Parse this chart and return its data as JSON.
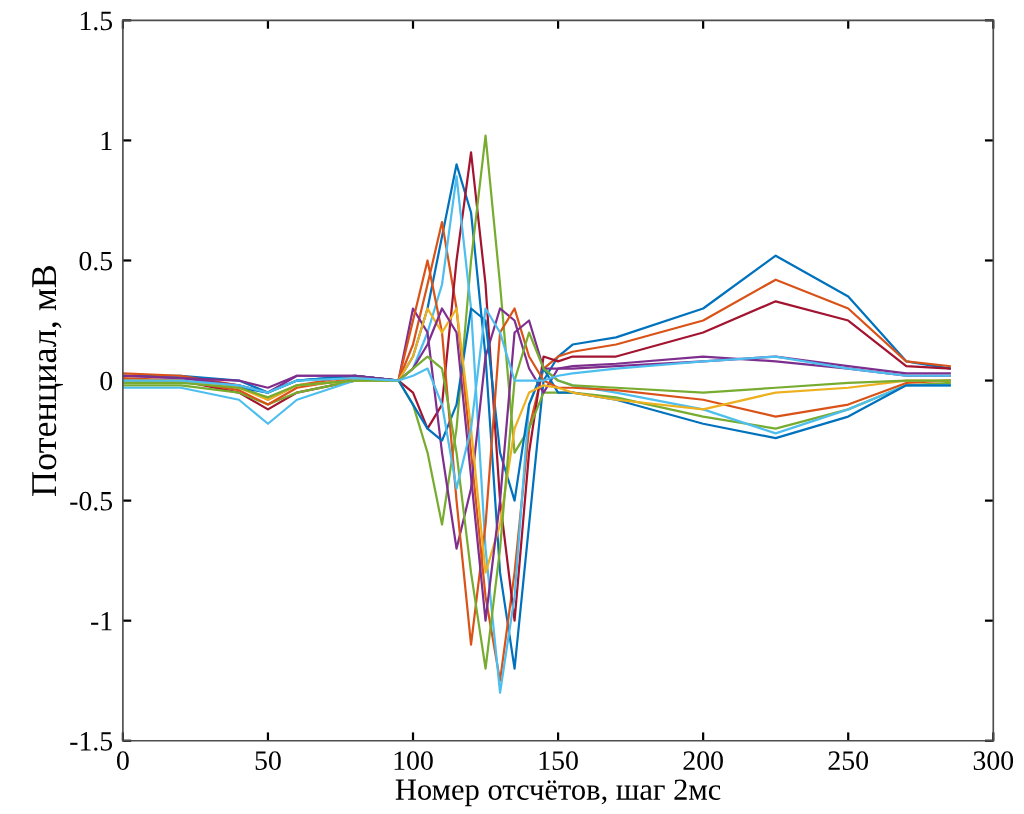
{
  "chart_data": {
    "type": "line",
    "xlabel": "Номер отсчётов, шаг 2мс",
    "ylabel": "Потенциал, мВ",
    "x": [
      0,
      20,
      40,
      50,
      60,
      80,
      95,
      100,
      105,
      110,
      115,
      120,
      125,
      130,
      135,
      140,
      145,
      150,
      155,
      170,
      200,
      225,
      250,
      270,
      285
    ],
    "xlim": [
      0,
      300
    ],
    "xticks": [
      0,
      50,
      100,
      150,
      200,
      250,
      300
    ],
    "ylim": [
      -1.5,
      1.5
    ],
    "yticks": [
      -1.5,
      -1,
      -0.5,
      0,
      0.5,
      1,
      1.5
    ],
    "grid": false,
    "legend": false,
    "marker": "none",
    "line_style": "solid",
    "series": [
      {
        "color": "#0072bd",
        "values": [
          0.02,
          0.02,
          0,
          -0.05,
          0,
          0.02,
          0,
          0.1,
          0.3,
          0.6,
          0.9,
          0.7,
          0.1,
          -0.8,
          -1.2,
          -0.6,
          0,
          0.1,
          0.15,
          0.18,
          0.3,
          0.52,
          0.35,
          0.08,
          0.05
        ]
      },
      {
        "color": "#d95319",
        "values": [
          0.03,
          0.02,
          -0.02,
          -0.08,
          -0.02,
          0.02,
          0,
          0.15,
          0.4,
          0.66,
          0.3,
          -0.3,
          -0.9,
          -1.25,
          -0.8,
          -0.2,
          0.05,
          0.1,
          0.12,
          0.15,
          0.25,
          0.42,
          0.3,
          0.08,
          0.06
        ]
      },
      {
        "color": "#a2142f",
        "values": [
          0,
          0,
          -0.05,
          -0.12,
          -0.05,
          0,
          0,
          -0.05,
          -0.2,
          -0.1,
          0.5,
          0.95,
          0.4,
          -0.5,
          -1.0,
          -0.3,
          0.1,
          0.08,
          0.1,
          0.1,
          0.2,
          0.33,
          0.25,
          0.06,
          0.05
        ]
      },
      {
        "color": "#77ac30",
        "values": [
          -0.02,
          -0.02,
          -0.05,
          -0.1,
          -0.05,
          0,
          0,
          -0.1,
          -0.3,
          -0.6,
          -0.2,
          0.5,
          1.02,
          0.4,
          -0.3,
          -0.2,
          -0.05,
          -0.05,
          -0.05,
          -0.07,
          -0.15,
          -0.2,
          -0.12,
          -0.02,
          -0.01
        ]
      },
      {
        "color": "#4dbeee",
        "values": [
          -0.03,
          -0.03,
          -0.08,
          -0.18,
          -0.08,
          0,
          0,
          0.05,
          0.2,
          0.4,
          0.85,
          0.3,
          -0.7,
          -1.3,
          -0.9,
          -0.1,
          0.05,
          0,
          -0.02,
          -0.05,
          -0.12,
          -0.22,
          -0.12,
          -0.02,
          -0.02
        ]
      },
      {
        "color": "#7e2f8e",
        "values": [
          0.02,
          0.01,
          -0.02,
          -0.05,
          0.02,
          0.02,
          0,
          0.3,
          0.2,
          -0.3,
          -0.7,
          -0.45,
          0.1,
          0.3,
          0.25,
          0.05,
          -0.05,
          0.05,
          0.06,
          0.07,
          0.1,
          0.08,
          0.05,
          0.02,
          0.02
        ]
      },
      {
        "color": "#0072bd",
        "values": [
          0,
          0,
          -0.03,
          -0.05,
          0,
          0.02,
          0,
          -0.1,
          -0.2,
          -0.25,
          -0.1,
          0.3,
          0.25,
          -0.3,
          -0.5,
          -0.1,
          0.05,
          -0.05,
          -0.05,
          -0.08,
          -0.18,
          -0.24,
          -0.15,
          -0.02,
          -0.02
        ]
      },
      {
        "color": "#d95319",
        "values": [
          0.01,
          0,
          -0.04,
          -0.1,
          -0.03,
          0.01,
          0,
          0.25,
          0.5,
          0.2,
          -0.5,
          -1.1,
          -0.6,
          0.2,
          0.3,
          0.1,
          0,
          -0.03,
          -0.03,
          -0.04,
          -0.08,
          -0.15,
          -0.1,
          -0.01,
          0
        ]
      },
      {
        "color": "#edb120",
        "values": [
          0,
          0,
          -0.03,
          -0.08,
          -0.02,
          0,
          0,
          0.1,
          0.3,
          0.2,
          0.3,
          -0.2,
          -0.8,
          -0.6,
          -0.2,
          -0.05,
          -0.02,
          -0.03,
          -0.05,
          -0.08,
          -0.12,
          -0.05,
          -0.03,
          0,
          0
        ]
      },
      {
        "color": "#7e2f8e",
        "values": [
          0.02,
          0.01,
          0,
          -0.03,
          0.02,
          0.02,
          0,
          0.05,
          0.15,
          0.3,
          0.2,
          -0.4,
          -1.0,
          -0.5,
          0.2,
          0.25,
          0.05,
          0.05,
          0.05,
          0.06,
          0.08,
          0.1,
          0.06,
          0.03,
          0.03
        ]
      },
      {
        "color": "#77ac30",
        "values": [
          -0.01,
          -0.01,
          -0.03,
          -0.07,
          -0.02,
          0,
          0,
          0.05,
          0.1,
          0.05,
          -0.3,
          -0.8,
          -1.2,
          -0.7,
          0,
          0.2,
          0.05,
          0,
          -0.02,
          -0.03,
          -0.05,
          -0.03,
          -0.01,
          0,
          0
        ]
      },
      {
        "color": "#4dbeee",
        "values": [
          0,
          0,
          -0.02,
          -0.05,
          0,
          0.01,
          0,
          0.02,
          0.05,
          -0.1,
          -0.45,
          -0.2,
          0.3,
          0.2,
          0,
          0,
          0,
          0.02,
          0.03,
          0.05,
          0.08,
          0.1,
          0.05,
          0.02,
          0.02
        ]
      }
    ]
  }
}
